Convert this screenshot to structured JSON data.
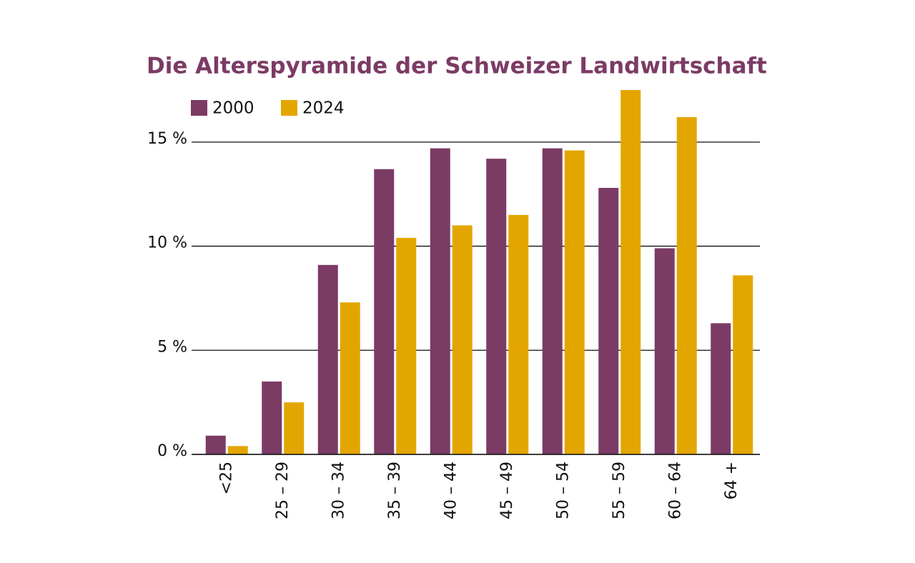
{
  "chart_data": {
    "type": "bar",
    "title": "Die Alterspyramide der Schweizer Landwirtschaft",
    "categories": [
      "<25",
      "25 – 29",
      "30 – 34",
      "35 – 39",
      "40 – 44",
      "45 – 49",
      "50 – 54",
      "55 – 59",
      "60 – 64",
      "64 +"
    ],
    "series": [
      {
        "name": "2000",
        "color": "#7b3b65",
        "values": [
          0.9,
          3.5,
          9.1,
          13.7,
          14.7,
          14.2,
          14.7,
          12.8,
          9.9,
          6.3
        ]
      },
      {
        "name": "2024",
        "color": "#e3a600",
        "values": [
          0.4,
          2.5,
          7.3,
          10.4,
          11.0,
          11.5,
          14.6,
          17.5,
          16.2,
          8.6
        ]
      }
    ],
    "ylim": [
      0,
      17.5
    ],
    "yticks": [
      {
        "value": 0,
        "label": "0 %"
      },
      {
        "value": 5,
        "label": "5 %"
      },
      {
        "value": 10,
        "label": "10 %"
      },
      {
        "value": 15,
        "label": "15 %"
      }
    ],
    "grid": true,
    "legend": "top-left"
  }
}
